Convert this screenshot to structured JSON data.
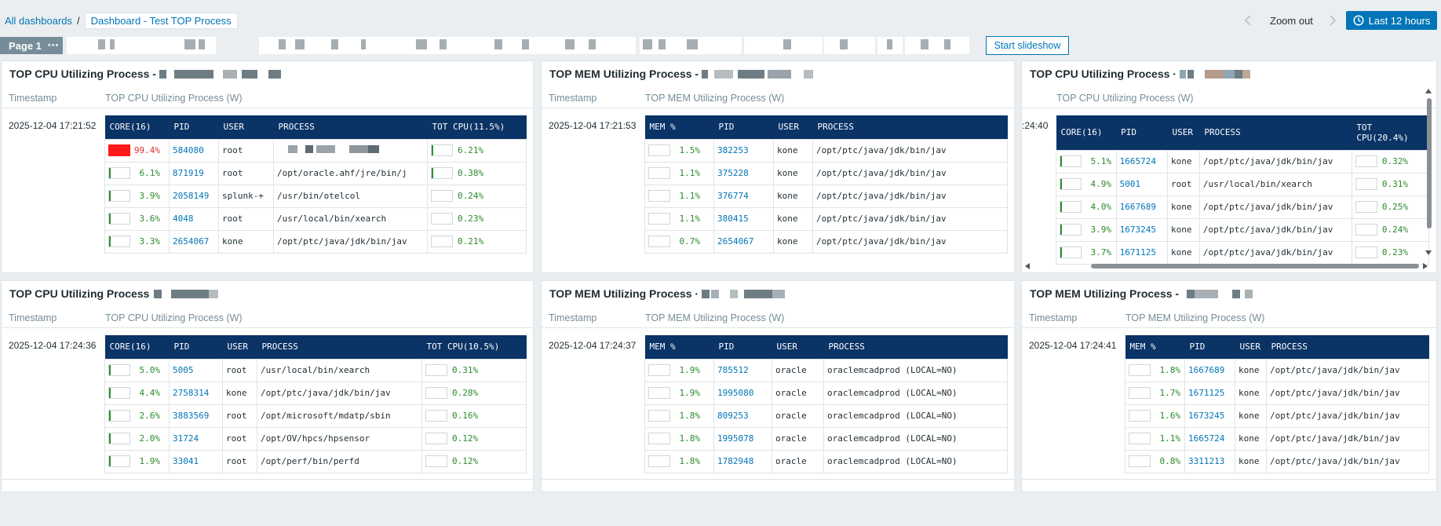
{
  "breadcrumb": {
    "root": "All dashboards",
    "separator": "/",
    "current": "Dashboard - Test TOP Process"
  },
  "controls": {
    "zoom_out": "Zoom out",
    "time_range": "Last 12 hours",
    "start_slideshow": "Start slideshow",
    "page_tab": "Page 1",
    "page_tab_menu": "•••"
  },
  "colors": {
    "accent": "#0275b8",
    "table_header": "#0a3366",
    "bar_green": "#2f8f2f",
    "bar_red": "#ff1a1a"
  },
  "widgets": [
    {
      "title": "TOP CPU Utilizing Process -",
      "col_timestamp": "Timestamp",
      "col_value": "TOP CPU Utilizing Process (W)",
      "timestamp": "2025-12-04 17:21:52",
      "headers": [
        "CORE(16)",
        "PID",
        "USER",
        "PROCESS",
        "TOT CPU(11.5%)"
      ],
      "rows": [
        {
          "pct": "99.4%",
          "level": 0.994,
          "alert": true,
          "pid": "584080",
          "user": "root",
          "process": "",
          "tot": "6.21%",
          "tot_level": 0.06
        },
        {
          "pct": "6.1%",
          "level": 0.06,
          "pid": "871919",
          "user": "root",
          "process": "/opt/oracle.ahf/jre/bin/j",
          "tot": "0.38%",
          "tot_level": 0.02
        },
        {
          "pct": "3.9%",
          "level": 0.04,
          "pid": "2058149",
          "user": "splunk-+",
          "process": "/usr/bin/otelcol",
          "tot": "0.24%",
          "tot_level": 0.0
        },
        {
          "pct": "3.6%",
          "level": 0.04,
          "pid": "4048",
          "user": "root",
          "process": "/usr/local/bin/xearch",
          "tot": "0.23%",
          "tot_level": 0.0
        },
        {
          "pct": "3.3%",
          "level": 0.03,
          "pid": "2654067",
          "user": "kone",
          "process": "/opt/ptc/java/jdk/bin/jav",
          "tot": "0.21%",
          "tot_level": 0.0
        }
      ]
    },
    {
      "title": "TOP MEM Utilizing Process -",
      "col_timestamp": "Timestamp",
      "col_value": "TOP MEM Utilizing Process (W)",
      "timestamp": "2025-12-04 17:21:53",
      "headers": [
        "MEM %",
        "PID",
        "USER",
        "PROCESS"
      ],
      "rows": [
        {
          "pct": "1.5%",
          "level": 0.0,
          "pid": "382253",
          "user": "kone",
          "process": "/opt/ptc/java/jdk/bin/jav"
        },
        {
          "pct": "1.1%",
          "level": 0.0,
          "pid": "375228",
          "user": "kone",
          "process": "/opt/ptc/java/jdk/bin/jav"
        },
        {
          "pct": "1.1%",
          "level": 0.0,
          "pid": "376774",
          "user": "kone",
          "process": "/opt/ptc/java/jdk/bin/jav"
        },
        {
          "pct": "1.1%",
          "level": 0.0,
          "pid": "380415",
          "user": "kone",
          "process": "/opt/ptc/java/jdk/bin/jav"
        },
        {
          "pct": "0.7%",
          "level": 0.0,
          "pid": "2654067",
          "user": "kone",
          "process": "/opt/ptc/java/jdk/bin/jav"
        }
      ]
    },
    {
      "title": "TOP CPU Utilizing Process ·",
      "col_timestamp": "",
      "col_value": "TOP CPU Utilizing Process (W)",
      "timestamp": ":24:40",
      "headers": [
        "CORE(16)",
        "PID",
        "USER",
        "PROCESS",
        "TOT CPU(20.4%)"
      ],
      "rows": [
        {
          "pct": "5.1%",
          "level": 0.05,
          "pid": "1665724",
          "user": "kone",
          "process": "/opt/ptc/java/jdk/bin/jav",
          "tot": "0.32%",
          "tot_level": 0.0
        },
        {
          "pct": "4.9%",
          "level": 0.05,
          "pid": "5001",
          "user": "root",
          "process": "/usr/local/bin/xearch",
          "tot": "0.31%",
          "tot_level": 0.0
        },
        {
          "pct": "4.0%",
          "level": 0.04,
          "pid": "1667689",
          "user": "kone",
          "process": "/opt/ptc/java/jdk/bin/jav",
          "tot": "0.25%",
          "tot_level": 0.0
        },
        {
          "pct": "3.9%",
          "level": 0.04,
          "pid": "1673245",
          "user": "kone",
          "process": "/opt/ptc/java/jdk/bin/jav",
          "tot": "0.24%",
          "tot_level": 0.0
        },
        {
          "pct": "3.7%",
          "level": 0.04,
          "pid": "1671125",
          "user": "kone",
          "process": "/opt/ptc/java/jdk/bin/jav",
          "tot": "0.23%",
          "tot_level": 0.0
        }
      ]
    },
    {
      "title": "TOP CPU Utilizing Process",
      "col_timestamp": "Timestamp",
      "col_value": "TOP CPU Utilizing Process (W)",
      "timestamp": "2025-12-04 17:24:36",
      "headers": [
        "CORE(16)",
        "PID",
        "USER",
        "PROCESS",
        "TOT CPU(10.5%)"
      ],
      "rows": [
        {
          "pct": "5.0%",
          "level": 0.05,
          "pid": "5005",
          "user": "root",
          "process": "/usr/local/bin/xearch",
          "tot": "0.31%",
          "tot_level": 0.0
        },
        {
          "pct": "4.4%",
          "level": 0.04,
          "pid": "2758314",
          "user": "kone",
          "process": "/opt/ptc/java/jdk/bin/jav",
          "tot": "0.28%",
          "tot_level": 0.0
        },
        {
          "pct": "2.6%",
          "level": 0.03,
          "pid": "3883569",
          "user": "root",
          "process": "/opt/microsoft/mdatp/sbin",
          "tot": "0.16%",
          "tot_level": 0.0
        },
        {
          "pct": "2.0%",
          "level": 0.02,
          "pid": "31724",
          "user": "root",
          "process": "/opt/OV/hpcs/hpsensor",
          "tot": "0.12%",
          "tot_level": 0.0
        },
        {
          "pct": "1.9%",
          "level": 0.02,
          "pid": "33041",
          "user": "root",
          "process": "/opt/perf/bin/perfd",
          "tot": "0.12%",
          "tot_level": 0.0
        }
      ]
    },
    {
      "title": "TOP MEM Utilizing Process ·",
      "col_timestamp": "Timestamp",
      "col_value": "TOP MEM Utilizing Process (W)",
      "timestamp": "2025-12-04 17:24:37",
      "headers": [
        "MEM %",
        "PID",
        "USER",
        "PROCESS"
      ],
      "rows": [
        {
          "pct": "1.9%",
          "level": 0.0,
          "pid": "785512",
          "user": "oracle",
          "process": "oraclemcadprod (LOCAL=NO)"
        },
        {
          "pct": "1.9%",
          "level": 0.0,
          "pid": "1995080",
          "user": "oracle",
          "process": "oraclemcadprod (LOCAL=NO)"
        },
        {
          "pct": "1.8%",
          "level": 0.0,
          "pid": "809253",
          "user": "oracle",
          "process": "oraclemcadprod (LOCAL=NO)"
        },
        {
          "pct": "1.8%",
          "level": 0.0,
          "pid": "1995078",
          "user": "oracle",
          "process": "oraclemcadprod (LOCAL=NO)"
        },
        {
          "pct": "1.8%",
          "level": 0.0,
          "pid": "1782948",
          "user": "oracle",
          "process": "oraclemcadprod (LOCAL=NO)"
        }
      ]
    },
    {
      "title": "TOP MEM Utilizing Process -",
      "col_timestamp": "Timestamp",
      "col_value": "TOP MEM Utilizing Process (W)",
      "timestamp": "2025-12-04 17:24:41",
      "headers": [
        "MEM %",
        "PID",
        "USER",
        "PROCESS"
      ],
      "rows": [
        {
          "pct": "1.8%",
          "level": 0.0,
          "pid": "1667689",
          "user": "kone",
          "process": "/opt/ptc/java/jdk/bin/jav"
        },
        {
          "pct": "1.7%",
          "level": 0.0,
          "pid": "1671125",
          "user": "kone",
          "process": "/opt/ptc/java/jdk/bin/jav"
        },
        {
          "pct": "1.6%",
          "level": 0.0,
          "pid": "1673245",
          "user": "kone",
          "process": "/opt/ptc/java/jdk/bin/jav"
        },
        {
          "pct": "1.1%",
          "level": 0.0,
          "pid": "1665724",
          "user": "kone",
          "process": "/opt/ptc/java/jdk/bin/jav"
        },
        {
          "pct": "0.8%",
          "level": 0.0,
          "pid": "3311213",
          "user": "kone",
          "process": "/opt/ptc/java/jdk/bin/jav"
        }
      ]
    }
  ]
}
